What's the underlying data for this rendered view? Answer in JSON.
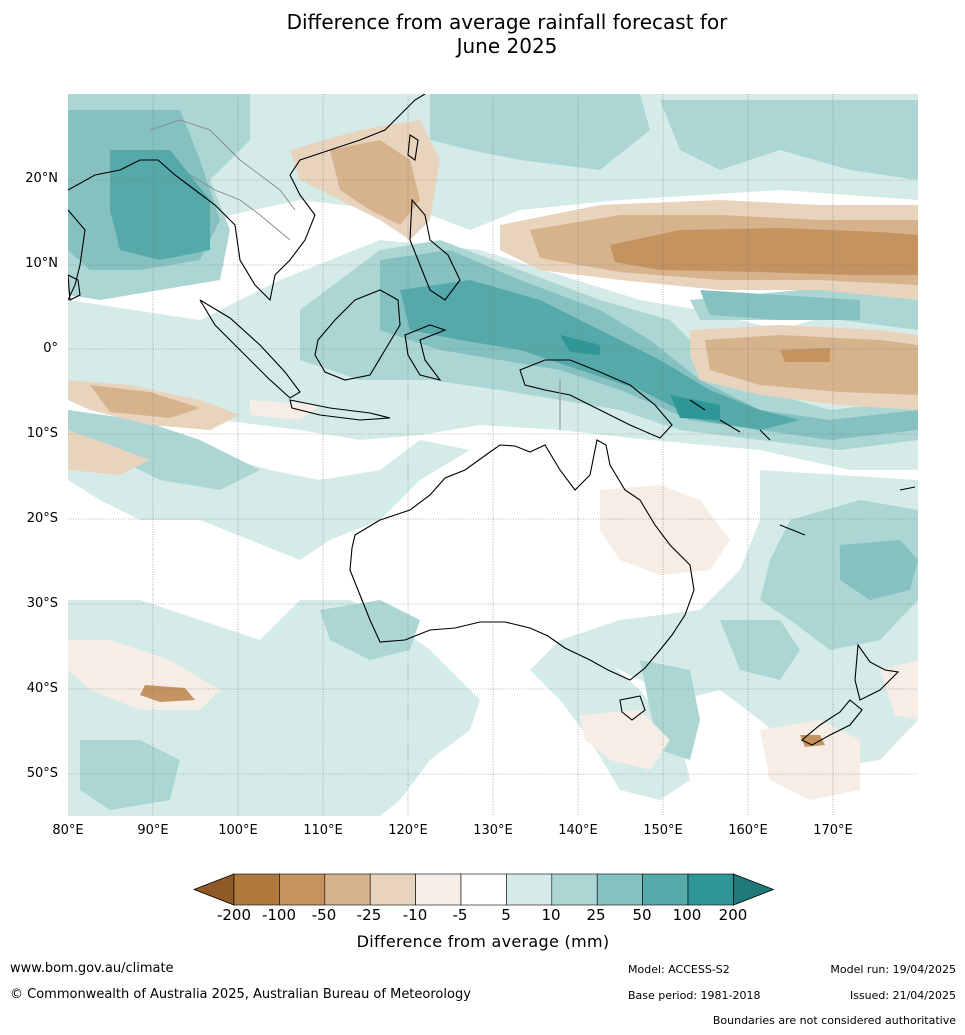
{
  "title_line1": "Difference from average rainfall forecast for",
  "title_line2": "June 2025",
  "lat_labels": [
    "20°N",
    "10°N",
    "0°",
    "10°S",
    "20°S",
    "30°S",
    "40°S",
    "50°S"
  ],
  "lon_labels": [
    "80°E",
    "90°E",
    "100°E",
    "110°E",
    "120°E",
    "130°E",
    "140°E",
    "150°E",
    "160°E",
    "170°E"
  ],
  "colorbar": {
    "title": "Difference from average (mm)",
    "ticks": [
      "-200",
      "-100",
      "-50",
      "-25",
      "-10",
      "-5",
      "5",
      "10",
      "25",
      "50",
      "100",
      "200"
    ],
    "colors": [
      "#8f5a26",
      "#b07a3f",
      "#c4935f",
      "#d6b38d",
      "#e8d3bd",
      "#f5ede6",
      "#ffffff",
      "#d5ebe8",
      "#acd6d4",
      "#84c1c0",
      "#56a9a9",
      "#2e9796",
      "#1f7b7a"
    ]
  },
  "footer": {
    "website": "www.bom.gov.au/climate",
    "copyright": "© Commonwealth of Australia 2025, Australian Bureau of Meteorology",
    "model": "Model: ACCESS-S2",
    "base_period": "Base period: 1981-2018",
    "model_run": "Model run: 19/04/2025",
    "issued": "Issued: 21/04/2025",
    "disclaimer": "Boundaries are not considered authoritative"
  }
}
